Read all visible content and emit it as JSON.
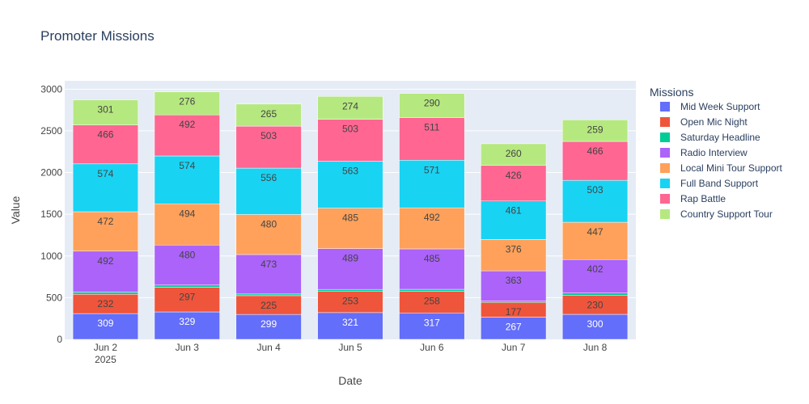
{
  "chart_data": {
    "type": "bar",
    "stacked": true,
    "title": "Promoter Missions",
    "xlabel": "Date",
    "ylabel": "Value",
    "ylim": [
      0,
      3100
    ],
    "yticks": [
      0,
      500,
      1000,
      1500,
      2000,
      2500,
      3000
    ],
    "categories": [
      "Jun 2",
      "Jun 3",
      "Jun 4",
      "Jun 5",
      "Jun 6",
      "Jun 7",
      "Jun 8"
    ],
    "x_year_label": "2025",
    "legend_title": "Missions",
    "legend_position": "right",
    "plot_background": "#e5ecf6",
    "series": [
      {
        "name": "Mid Week Support",
        "color": "#636efa",
        "values": [
          309,
          329,
          299,
          321,
          317,
          267,
          300
        ],
        "label_color": "#ffffff",
        "show_labels": true
      },
      {
        "name": "Open Mic Night",
        "color": "#ef553b",
        "values": [
          232,
          297,
          225,
          253,
          258,
          177,
          230
        ],
        "label_color": "#444444",
        "show_labels": true
      },
      {
        "name": "Saturday Headline",
        "color": "#00cc96",
        "values": [
          25,
          25,
          20,
          25,
          25,
          15,
          25
        ],
        "label_color": "#444444",
        "show_labels": false
      },
      {
        "name": "Radio Interview",
        "color": "#ab63fa",
        "values": [
          492,
          480,
          473,
          489,
          485,
          363,
          402
        ],
        "label_color": "#444444",
        "show_labels": true
      },
      {
        "name": "Local Mini Tour Support",
        "color": "#ffa15a",
        "values": [
          472,
          494,
          480,
          485,
          492,
          376,
          447
        ],
        "label_color": "#444444",
        "show_labels": true
      },
      {
        "name": "Full Band Support",
        "color": "#19d3f3",
        "values": [
          574,
          574,
          556,
          563,
          571,
          461,
          503
        ],
        "label_color": "#444444",
        "show_labels": true
      },
      {
        "name": "Rap Battle",
        "color": "#ff6692",
        "values": [
          466,
          492,
          503,
          503,
          511,
          426,
          466
        ],
        "label_color": "#444444",
        "show_labels": true
      },
      {
        "name": "Country Support Tour",
        "color": "#b6e880",
        "values": [
          301,
          276,
          265,
          274,
          290,
          260,
          259
        ],
        "label_color": "#444444",
        "show_labels": true
      }
    ]
  }
}
